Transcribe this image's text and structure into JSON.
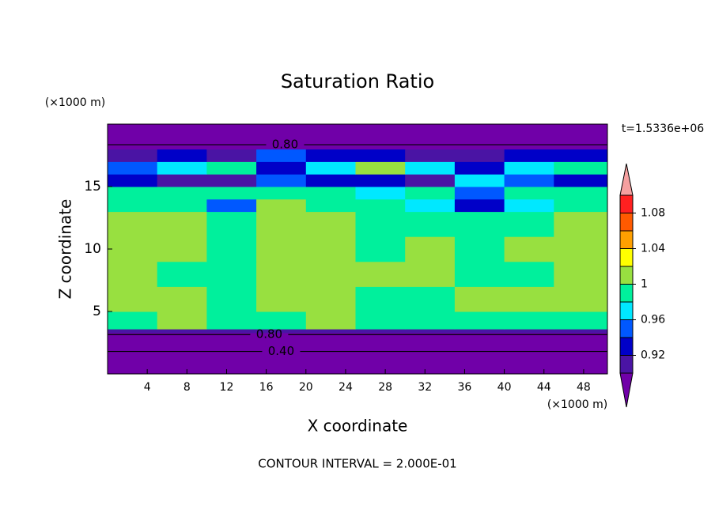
{
  "chart_data": {
    "type": "contour",
    "title": "Saturation Ratio",
    "xlabel": "X coordinate",
    "ylabel": "Z coordinate",
    "x_unit": "(×1000 m)",
    "y_unit": "(×1000 m)",
    "time_label": "t=1.5336e+06",
    "footer": "CONTOUR INTERVAL = 2.000E-01",
    "xlim": [
      0,
      50.4
    ],
    "ylim": [
      0,
      20
    ],
    "xticks": [
      4,
      8,
      12,
      16,
      20,
      24,
      28,
      32,
      36,
      40,
      44,
      48
    ],
    "yticks": [
      5,
      10,
      15
    ],
    "field": {
      "x": [
        0,
        5,
        10,
        15,
        20,
        25,
        30,
        35,
        40,
        45,
        50.4
      ],
      "z": [
        0,
        3.3,
        3.6,
        5,
        7,
        9,
        11,
        13,
        14,
        15,
        16,
        17,
        18,
        20
      ],
      "values": [
        [
          0.5,
          0.5,
          0.5,
          0.5,
          0.5,
          0.5,
          0.5,
          0.5,
          0.5,
          0.5
        ],
        [
          0.91,
          0.91,
          0.91,
          0.91,
          0.91,
          0.91,
          0.91,
          0.91,
          0.91,
          0.91
        ],
        [
          0.99,
          1.01,
          0.99,
          0.99,
          1.01,
          0.99,
          0.99,
          0.99,
          0.99,
          0.99
        ],
        [
          1.01,
          1.01,
          0.99,
          1.01,
          1.01,
          0.99,
          0.99,
          1.01,
          1.01,
          1.01
        ],
        [
          1.01,
          0.99,
          0.99,
          1.01,
          1.01,
          1.01,
          1.01,
          0.99,
          0.99,
          1.01
        ],
        [
          1.01,
          1.01,
          0.99,
          1.01,
          1.01,
          0.99,
          1.01,
          0.99,
          1.01,
          1.01
        ],
        [
          1.01,
          1.01,
          0.99,
          1.01,
          1.01,
          0.99,
          0.99,
          0.99,
          0.99,
          1.01
        ],
        [
          0.99,
          0.99,
          0.95,
          1.01,
          0.99,
          0.99,
          0.97,
          0.93,
          0.97,
          0.99
        ],
        [
          0.99,
          0.99,
          0.99,
          0.99,
          0.99,
          0.97,
          0.99,
          0.95,
          0.99,
          0.99
        ],
        [
          0.93,
          0.91,
          0.91,
          0.95,
          0.93,
          0.93,
          0.91,
          0.97,
          0.95,
          0.93
        ],
        [
          0.95,
          0.97,
          0.99,
          0.93,
          0.97,
          1.01,
          0.97,
          0.93,
          0.97,
          0.99
        ],
        [
          0.91,
          0.93,
          0.91,
          0.95,
          0.93,
          0.93,
          0.91,
          0.91,
          0.93,
          0.93
        ],
        [
          0.85,
          0.85,
          0.85,
          0.85,
          0.85,
          0.85,
          0.85,
          0.85,
          0.85,
          0.85
        ]
      ]
    },
    "contours": [
      {
        "label": "0.80",
        "value": 0.8,
        "x": 17.9,
        "z": 18.35
      },
      {
        "label": "0.80",
        "value": 0.8,
        "x": 16.3,
        "z": 3.15
      },
      {
        "label": "0.40",
        "value": 0.4,
        "x": 17.5,
        "z": 1.8
      }
    ],
    "colorbar": {
      "levels": [
        0.9,
        0.92,
        0.94,
        0.96,
        0.98,
        1.0,
        1.02,
        1.04,
        1.06,
        1.08,
        1.1
      ],
      "colors": [
        "#7000a8",
        "#4a14a4",
        "#0000c8",
        "#0058ff",
        "#00e8ff",
        "#00f09c",
        "#98e040",
        "#ffff00",
        "#ffa000",
        "#ff5a00",
        "#ff2020",
        "#f5a0a0"
      ],
      "ticks": [
        0.92,
        0.96,
        1,
        1.04,
        1.08
      ]
    }
  }
}
